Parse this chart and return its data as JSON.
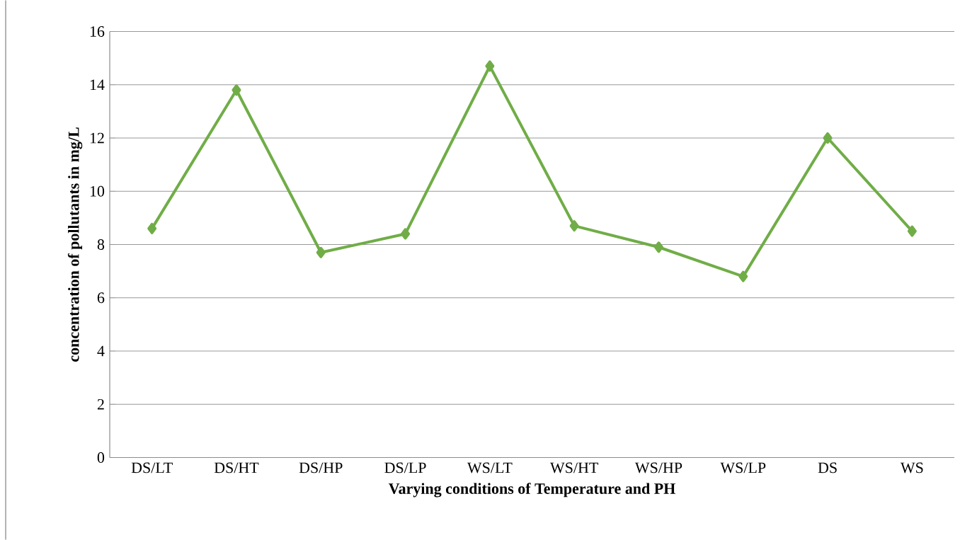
{
  "chart_data": {
    "type": "line",
    "xlabel": "Varying conditions of Temperature and PH",
    "ylabel": "concentration of pollutants in mg/L",
    "categories": [
      "DS/LT",
      "DS/HT",
      "DS/HP",
      "DS/LP",
      "WS/LT",
      "WS/HT",
      "WS/HP",
      "WS/LP",
      "DS",
      "WS"
    ],
    "series": [
      {
        "color": "#70ad47",
        "values": [
          8.6,
          13.8,
          7.7,
          8.4,
          14.7,
          8.7,
          7.9,
          6.8,
          12.0,
          8.5
        ]
      }
    ],
    "ylim": [
      0,
      16
    ],
    "yticks": [
      0,
      2,
      4,
      6,
      8,
      10,
      12,
      14,
      16
    ],
    "grid": "y",
    "marker": "diamond",
    "line_style": "solid"
  }
}
